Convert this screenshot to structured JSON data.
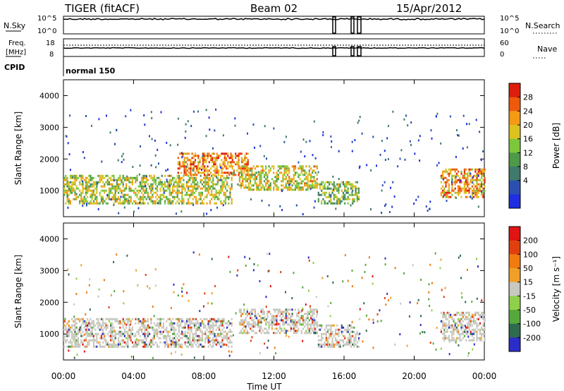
{
  "header": {
    "radar": "TIGER (fitACF)",
    "beam": "Beam 02",
    "date": "15/Apr/2012"
  },
  "strips": {
    "nsky_label": "N.Sky",
    "nsearch_label": "N.Search",
    "freq_label_line1": "Freq.",
    "freq_label_line2": "[MHz]",
    "nave_label": "Nave",
    "cpid_label": "CPID",
    "cpid_value": "normal 150",
    "noise_left_ticks": [
      "10^5",
      "10^0"
    ],
    "noise_right_ticks": [
      "10^5",
      "10^0"
    ],
    "freq_left_ticks": [
      "18",
      "8"
    ],
    "freq_right_ticks": [
      "60",
      "0"
    ]
  },
  "chart_data": [
    {
      "type": "heatmap",
      "panel": "power",
      "ylabel": "Slant Range [km]",
      "ylim": [
        180,
        4500
      ],
      "yticks": [
        1000,
        2000,
        3000,
        4000
      ],
      "xlim": [
        0,
        24
      ],
      "xticks": [
        "00:00",
        "04:00",
        "08:00",
        "12:00",
        "16:00",
        "20:00",
        "00:00"
      ],
      "xlabel": "",
      "colorbar": {
        "label": "Power [dB]",
        "ticks": [
          "4",
          "8",
          "12",
          "16",
          "20",
          "24",
          "28"
        ],
        "colors": [
          "#1e2ee0",
          "#2a4fb0",
          "#3f7a6c",
          "#4e9a48",
          "#7cc83a",
          "#dcc21e",
          "#f49a14",
          "#ee5a0c",
          "#dd1e0c"
        ]
      },
      "echo_regions": [
        {
          "t0": 0.0,
          "t1": 9.6,
          "r0": 620,
          "r1": 1500,
          "level": 0.55
        },
        {
          "t0": 6.5,
          "t1": 10.5,
          "r0": 1500,
          "r1": 2200,
          "level": 0.8
        },
        {
          "t0": 10.0,
          "t1": 14.5,
          "r0": 1000,
          "r1": 1800,
          "level": 0.6
        },
        {
          "t0": 14.5,
          "t1": 16.8,
          "r0": 600,
          "r1": 1300,
          "level": 0.45
        },
        {
          "t0": 21.5,
          "t1": 24.0,
          "r0": 800,
          "r1": 1700,
          "level": 0.75
        }
      ]
    },
    {
      "type": "heatmap",
      "panel": "velocity",
      "ylabel": "Slant Range [km]",
      "ylim": [
        180,
        4500
      ],
      "yticks": [
        1000,
        2000,
        3000,
        4000
      ],
      "xlim": [
        0,
        24
      ],
      "xticks": [
        "00:00",
        "04:00",
        "08:00",
        "12:00",
        "16:00",
        "20:00",
        "00:00"
      ],
      "xlabel": "Time UT",
      "colorbar": {
        "label": "Velocity [m s⁻¹]",
        "ticks": [
          "200",
          "100",
          "50",
          "15",
          "-15",
          "-50",
          "-100",
          "-200"
        ],
        "colors": [
          "#2c2cc8",
          "#2e6a4e",
          "#56a83c",
          "#8ed04a",
          "#c8c8c0",
          "#f0a028",
          "#f07c10",
          "#e04010",
          "#e01414"
        ]
      },
      "echo_regions": [
        {
          "t0": 0.0,
          "t1": 9.6,
          "r0": 620,
          "r1": 1500,
          "level": 0.5
        },
        {
          "t0": 10.0,
          "t1": 14.5,
          "r0": 1000,
          "r1": 1800,
          "level": 0.5
        },
        {
          "t0": 14.5,
          "t1": 16.8,
          "r0": 600,
          "r1": 1300,
          "level": 0.5
        },
        {
          "t0": 21.5,
          "t1": 24.0,
          "r0": 800,
          "r1": 1700,
          "level": 0.5
        }
      ]
    }
  ],
  "colors": {
    "frame": "#000000",
    "background": "#ffffff"
  }
}
